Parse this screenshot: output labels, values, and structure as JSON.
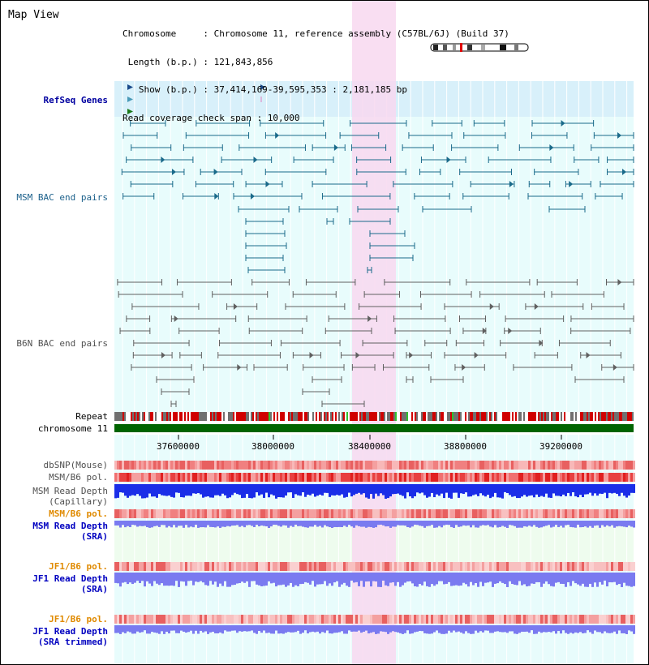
{
  "panel": {
    "title": "Map View",
    "info_lines": [
      "Chromosome     : Chromosome 11, reference assembly (C57BL/6J) (Build 37)",
      " Length (b.p.) : 121,843,856",
      "   Show (b.p.) : 37,414,169-39,595,353 : 2,181,185 bp",
      "Read coverage check span : 10,000"
    ]
  },
  "tracks": {
    "refseq": "RefSeq Genes",
    "msm_bac": "MSM BAC end pairs",
    "b6n_bac": "B6N BAC end pairs",
    "repeat": "Repeat",
    "chromosome": "chromosome 11",
    "dbsnp": "dbSNP(Mouse)",
    "msm_b6_pol_1": "MSM/B6 pol.",
    "msm_read_depth_cap_1": "MSM Read Depth",
    "msm_read_depth_cap_2": "(Capillary)",
    "msm_b6_pol_2": "MSM/B6 pol.",
    "msm_read_depth_sra_1": "MSM Read Depth",
    "msm_read_depth_sra_2": "(SRA)",
    "jf1_b6_pol_1": "JF1/B6 pol.",
    "jf1_read_depth_sra_1": "JF1 Read Depth",
    "jf1_read_depth_sra_2": "(SRA)",
    "jf1_b6_pol_2": "JF1/B6 pol.",
    "jf1_read_depth_trim_1": "JF1 Read Depth",
    "jf1_read_depth_trim_2": "(SRA trimmed)"
  },
  "axis": {
    "ticks": [
      "37600000",
      "38000000",
      "38400000",
      "38800000",
      "39200000"
    ]
  },
  "colors": {
    "highlight": "#f8d8f0",
    "refseq_bg": "#d8f0fa",
    "lane_bg": "#e8fcfc",
    "msm_pair": "#1a6a8a",
    "b6n_pair": "#606060",
    "chrom_bar": "#006400",
    "depth_blue": "#1a2ee8",
    "depth_light": "#7a7af0"
  }
}
